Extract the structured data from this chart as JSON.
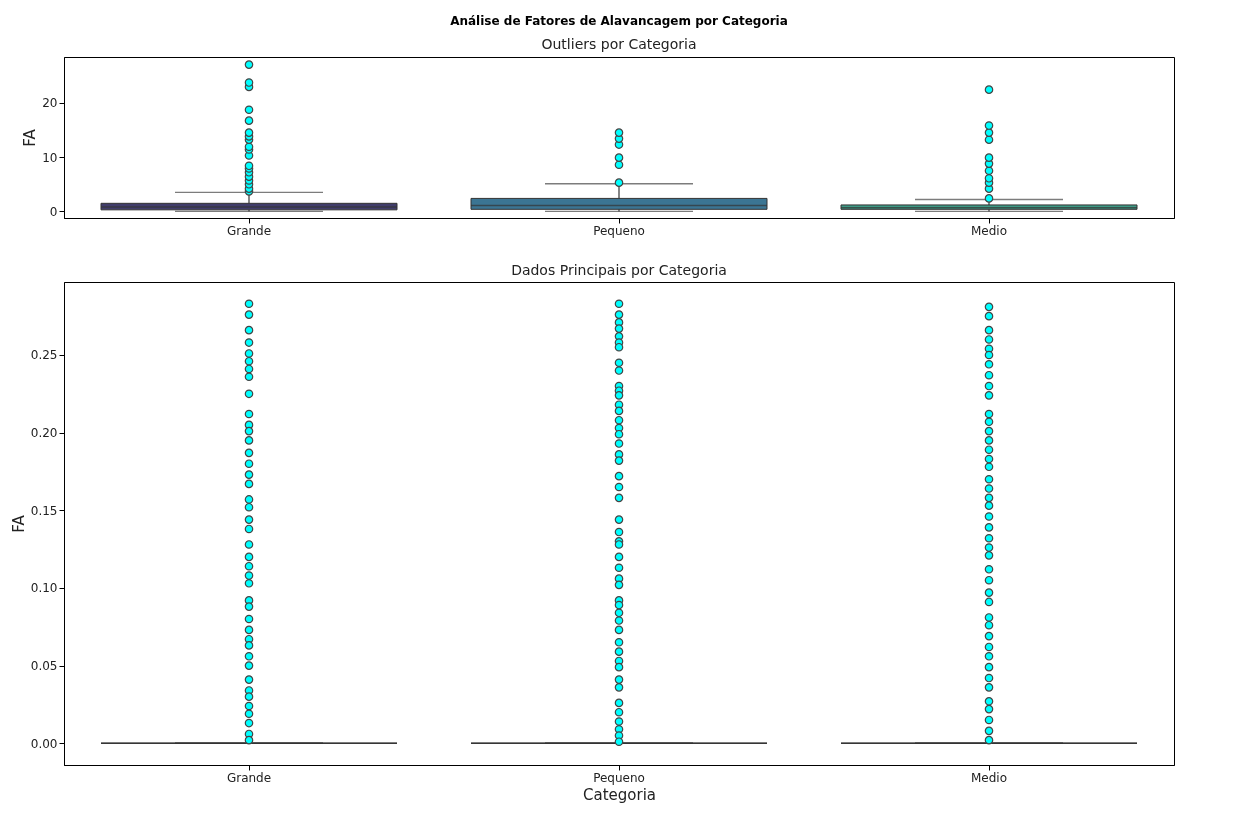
{
  "chart_data": [
    {
      "type": "box",
      "title": "Análise de Fatores de Alavancagem por Categoria",
      "subtitle": "Outliers por Categoria",
      "ylabel": "FA",
      "categories": [
        "Grande",
        "Pequeno",
        "Medio"
      ],
      "colors": [
        "#413d6b",
        "#3b7593",
        "#3e9a85"
      ],
      "ylim": [
        -1.2,
        28.4
      ],
      "yticks": [
        0,
        10,
        20
      ],
      "boxes": [
        {
          "low": 0,
          "q1": 0.3,
          "median": 0.8,
          "q3": 1.5,
          "high": 3.5,
          "outliers": [
            3.7,
            4.2,
            5.0,
            5.7,
            6.4,
            7.2,
            7.9,
            8.4,
            10.3,
            11.4,
            11.9,
            13.2,
            13.8,
            14.5,
            16.7,
            18.7,
            22.9,
            23.7,
            27.0
          ]
        },
        {
          "low": 0,
          "q1": 0.4,
          "median": 1.1,
          "q3": 2.4,
          "high": 5.1,
          "outliers": [
            5.3,
            8.6,
            9.9,
            12.3,
            13.4,
            14.5
          ]
        },
        {
          "low": 0,
          "q1": 0.4,
          "median": 0.7,
          "q3": 1.2,
          "high": 2.2,
          "outliers": [
            2.4,
            4.2,
            5.3,
            6.1,
            7.5,
            8.8,
            9.9,
            13.2,
            14.5,
            15.8,
            22.4
          ]
        }
      ]
    },
    {
      "type": "box",
      "title": "Dados Principais por Categoria",
      "xlabel": "Categoria",
      "ylabel": "FA",
      "categories": [
        "Grande",
        "Pequeno",
        "Medio"
      ],
      "ylim": [
        -0.014,
        0.297
      ],
      "yticks": [
        {
          "value": 0,
          "label": "0.00"
        },
        {
          "value": 0.05,
          "label": "0.05"
        },
        {
          "value": 0.1,
          "label": "0.10"
        },
        {
          "value": 0.15,
          "label": "0.15"
        },
        {
          "value": 0.2,
          "label": "0.20"
        },
        {
          "value": 0.25,
          "label": "0.25"
        }
      ],
      "boxes": [
        {
          "low": 0,
          "q1": 0,
          "median": 0,
          "q3": 0,
          "high": 0,
          "outliers": [
            0.283,
            0.276,
            0.266,
            0.258,
            0.251,
            0.246,
            0.241,
            0.236,
            0.225,
            0.212,
            0.205,
            0.201,
            0.195,
            0.187,
            0.18,
            0.173,
            0.167,
            0.157,
            0.152,
            0.144,
            0.138,
            0.128,
            0.12,
            0.114,
            0.108,
            0.103,
            0.092,
            0.088,
            0.08,
            0.073,
            0.067,
            0.063,
            0.056,
            0.05,
            0.041,
            0.034,
            0.03,
            0.024,
            0.019,
            0.013,
            0.006,
            0.002
          ]
        },
        {
          "low": 0,
          "q1": 0,
          "median": 0,
          "q3": 0,
          "high": 0,
          "outliers": [
            0.283,
            0.276,
            0.271,
            0.267,
            0.262,
            0.258,
            0.255,
            0.245,
            0.24,
            0.23,
            0.227,
            0.224,
            0.218,
            0.214,
            0.208,
            0.203,
            0.199,
            0.193,
            0.186,
            0.182,
            0.172,
            0.165,
            0.158,
            0.144,
            0.136,
            0.13,
            0.128,
            0.12,
            0.113,
            0.106,
            0.102,
            0.092,
            0.089,
            0.084,
            0.079,
            0.073,
            0.065,
            0.059,
            0.053,
            0.049,
            0.041,
            0.036,
            0.026,
            0.02,
            0.014,
            0.009,
            0.005,
            0.001
          ]
        },
        {
          "low": 0,
          "q1": 0,
          "median": 0,
          "q3": 0,
          "high": 0,
          "outliers": [
            0.281,
            0.275,
            0.266,
            0.26,
            0.254,
            0.25,
            0.244,
            0.237,
            0.23,
            0.224,
            0.212,
            0.207,
            0.201,
            0.195,
            0.189,
            0.183,
            0.178,
            0.17,
            0.164,
            0.158,
            0.153,
            0.146,
            0.139,
            0.132,
            0.126,
            0.121,
            0.112,
            0.105,
            0.097,
            0.091,
            0.081,
            0.076,
            0.069,
            0.062,
            0.056,
            0.049,
            0.042,
            0.036,
            0.027,
            0.022,
            0.015,
            0.008,
            0.002
          ]
        }
      ]
    }
  ]
}
